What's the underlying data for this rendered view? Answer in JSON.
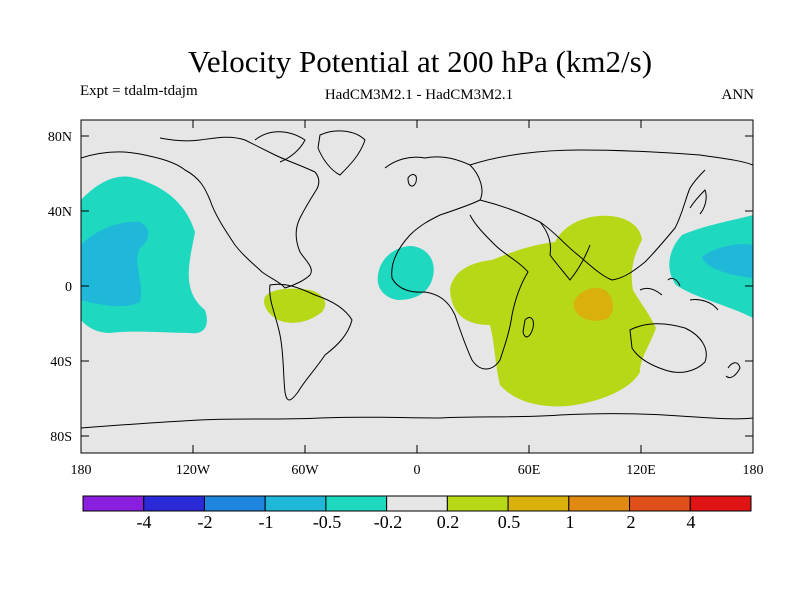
{
  "header": {
    "title": "Velocity Potential at 200 hPa (km2/s)",
    "experiment": "Expt = tdalm-tdajm",
    "models": "HadCM3M2.1 - HadCM3M2.1",
    "season": "ANN"
  },
  "axes": {
    "y_ticks": [
      "80N",
      "40N",
      "0",
      "40S",
      "80S"
    ],
    "x_ticks": [
      "180",
      "120W",
      "60W",
      "0",
      "60E",
      "120E",
      "180"
    ]
  },
  "colorbar": {
    "labels": [
      "-4",
      "-2",
      "-1",
      "-0.5",
      "-0.2",
      "0.2",
      "0.5",
      "1",
      "2",
      "4"
    ],
    "colors": [
      "#8a1fe0",
      "#2a2ad6",
      "#1f86e0",
      "#1fb8d8",
      "#1ed8c0",
      "#e6e6e6",
      "#b6d816",
      "#d9b00c",
      "#e08a12",
      "#e0501a",
      "#e01414"
    ]
  },
  "map": {
    "background_color": "#e6e6e6",
    "regions": [
      {
        "name": "central-pacific-negative",
        "level": "-0.2"
      },
      {
        "name": "central-pacific-core",
        "level": "-0.5"
      },
      {
        "name": "west-pacific-negative",
        "level": "-0.2"
      },
      {
        "name": "west-pacific-core",
        "level": "-0.5"
      },
      {
        "name": "east-atlantic-negative",
        "level": "-0.2"
      },
      {
        "name": "south-america-positive",
        "level": "0.2"
      },
      {
        "name": "indian-ocean-positive",
        "level": "0.2"
      },
      {
        "name": "indian-ocean-core",
        "level": "0.5"
      }
    ]
  }
}
